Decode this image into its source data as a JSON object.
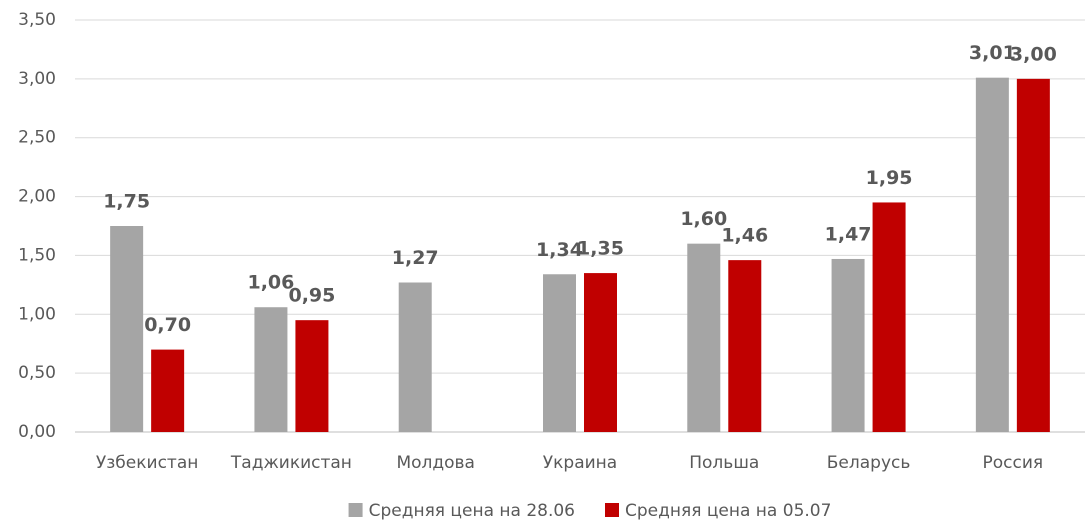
{
  "chart_data": {
    "type": "bar",
    "categories": [
      "Узбекистан",
      "Таджикистан",
      "Молдова",
      "Украина",
      "Польша",
      "Беларусь",
      "Россия"
    ],
    "series": [
      {
        "name": "Средняя цена на 28.06",
        "color": "#a5a5a5",
        "values": [
          1.75,
          1.06,
          1.27,
          1.34,
          1.6,
          1.47,
          3.01
        ],
        "value_labels": [
          "1,75",
          "1,06",
          "1,27",
          "1,34",
          "1,60",
          "1,47",
          "3,01"
        ]
      },
      {
        "name": "Средняя цена на 05.07",
        "color": "#c00000",
        "values": [
          0.7,
          0.95,
          null,
          1.35,
          1.46,
          1.95,
          3.0
        ],
        "value_labels": [
          "0,70",
          "0,95",
          null,
          "1,35",
          "1,46",
          "1,95",
          "3,00"
        ]
      }
    ],
    "ylim": [
      0,
      3.5
    ],
    "yticks": [
      {
        "value": 0,
        "label": "0,00"
      },
      {
        "value": 0.5,
        "label": "0,50"
      },
      {
        "value": 1,
        "label": "1,00"
      },
      {
        "value": 1.5,
        "label": "1,50"
      },
      {
        "value": 2,
        "label": "2,00"
      },
      {
        "value": 2.5,
        "label": "2,50"
      },
      {
        "value": 3,
        "label": "3,00"
      },
      {
        "value": 3.5,
        "label": "3,50"
      }
    ],
    "grid": true,
    "legend": "bottom"
  }
}
